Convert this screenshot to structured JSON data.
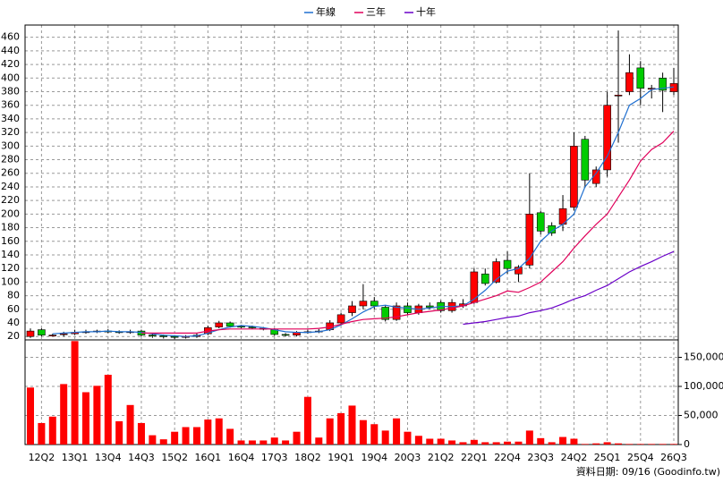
{
  "chart_data": [
    {
      "type": "candlestick",
      "legend": "top",
      "grid": true,
      "up_color": "#ff0000",
      "down_color": "#00cc00",
      "categories": [
        null,
        "12Q2",
        null,
        null,
        "13Q1",
        null,
        null,
        "13Q4",
        null,
        null,
        "14Q3",
        null,
        null,
        "15Q2",
        null,
        null,
        "16Q1",
        null,
        null,
        "16Q4",
        null,
        null,
        "17Q3",
        null,
        null,
        "18Q2",
        null,
        null,
        "19Q1",
        null,
        null,
        "19Q4",
        null,
        null,
        "20Q3",
        null,
        null,
        "21Q2",
        null,
        null,
        "22Q1",
        null,
        null,
        "22Q4",
        null,
        null,
        "23Q3",
        null,
        null,
        "24Q2",
        null,
        null,
        "25Q1",
        null,
        null,
        "25Q4",
        null,
        null,
        "26Q3"
      ],
      "open": [
        20,
        30,
        22,
        23,
        24,
        26,
        27,
        28,
        27,
        26,
        28,
        22,
        21,
        20,
        19,
        20,
        24,
        34,
        40,
        35,
        34,
        32,
        30,
        23,
        22,
        26,
        27,
        30,
        40,
        55,
        65,
        72,
        63,
        45,
        65,
        55,
        65,
        70,
        58,
        65,
        70,
        112,
        100,
        132,
        112,
        125,
        202,
        183,
        185,
        210,
        310,
        245,
        265,
        375,
        380,
        415,
        385,
        400,
        380
      ],
      "high": [
        32,
        32,
        24,
        27,
        30,
        30,
        30,
        31,
        29,
        30,
        30,
        24,
        23,
        22,
        22,
        25,
        36,
        43,
        42,
        37,
        36,
        34,
        32,
        25,
        28,
        30,
        31,
        44,
        55,
        72,
        97,
        78,
        66,
        70,
        70,
        68,
        70,
        73,
        75,
        75,
        120,
        120,
        135,
        145,
        125,
        260,
        205,
        188,
        228,
        320,
        315,
        270,
        380,
        470,
        435,
        425,
        390,
        408,
        415
      ],
      "low": [
        18,
        20,
        20,
        20,
        22,
        24,
        25,
        25,
        24,
        24,
        20,
        18,
        17,
        16,
        17,
        18,
        22,
        32,
        33,
        32,
        31,
        29,
        21,
        20,
        20,
        24,
        25,
        28,
        38,
        50,
        60,
        60,
        42,
        43,
        52,
        52,
        60,
        55,
        55,
        62,
        68,
        95,
        98,
        112,
        100,
        120,
        170,
        168,
        175,
        205,
        240,
        240,
        255,
        305,
        375,
        360,
        370,
        350,
        375
      ],
      "close": [
        28,
        22,
        22,
        24,
        26,
        27,
        28,
        27,
        26,
        27,
        22,
        21,
        20,
        19,
        20,
        22,
        33,
        40,
        35,
        34,
        33,
        31,
        23,
        22,
        26,
        27,
        28,
        40,
        52,
        65,
        72,
        65,
        45,
        65,
        55,
        65,
        63,
        58,
        70,
        68,
        115,
        98,
        130,
        120,
        122,
        200,
        175,
        172,
        208,
        300,
        250,
        265,
        360,
        375,
        408,
        385,
        385,
        382,
        392
      ],
      "series": [
        {
          "name": "年線",
          "color": "#1f6fd0",
          "values": [
            null,
            null,
            24,
            25,
            26,
            27,
            27,
            28,
            27,
            27,
            26,
            24,
            22,
            21,
            20,
            21,
            25,
            30,
            34,
            36,
            35,
            33,
            30,
            27,
            26,
            26,
            27,
            30,
            37,
            46,
            56,
            64,
            66,
            63,
            62,
            60,
            62,
            64,
            64,
            65,
            75,
            88,
            104,
            116,
            120,
            135,
            160,
            175,
            185,
            200,
            240,
            260,
            285,
            320,
            360,
            370,
            383,
            385,
            387
          ]
        },
        {
          "name": "三年",
          "color": "#e0005a",
          "values": [
            null,
            null,
            null,
            null,
            null,
            null,
            null,
            null,
            null,
            null,
            25,
            25,
            25,
            25,
            25,
            25,
            28,
            30,
            31,
            31,
            31,
            31,
            31,
            31,
            31,
            31,
            32,
            34,
            38,
            42,
            45,
            46,
            47,
            49,
            52,
            55,
            57,
            59,
            62,
            65,
            70,
            75,
            80,
            87,
            85,
            92,
            100,
            115,
            130,
            150,
            168,
            185,
            200,
            225,
            250,
            278,
            295,
            305,
            322
          ]
        },
        {
          "name": "十年",
          "color": "#6a00c8",
          "values": [
            null,
            null,
            null,
            null,
            null,
            null,
            null,
            null,
            null,
            null,
            null,
            null,
            null,
            null,
            null,
            null,
            null,
            null,
            null,
            null,
            null,
            null,
            null,
            null,
            null,
            null,
            null,
            null,
            null,
            null,
            null,
            null,
            null,
            null,
            null,
            null,
            null,
            null,
            null,
            38,
            40,
            42,
            45,
            48,
            50,
            55,
            58,
            62,
            68,
            75,
            80,
            88,
            95,
            105,
            115,
            123,
            130,
            138,
            145
          ]
        }
      ],
      "ylim": [
        15,
        478
      ],
      "yticks": [
        20,
        40,
        60,
        80,
        100,
        120,
        140,
        160,
        180,
        200,
        220,
        240,
        260,
        280,
        300,
        320,
        340,
        360,
        380,
        400,
        420,
        440,
        460
      ]
    },
    {
      "type": "bar",
      "color": "#ff0000",
      "grid": true,
      "values": [
        98000,
        37000,
        48000,
        104000,
        178000,
        90000,
        101000,
        120000,
        40000,
        68000,
        37000,
        16000,
        9000,
        22000,
        30000,
        30000,
        43000,
        45000,
        27000,
        7000,
        7000,
        7000,
        12000,
        7000,
        22000,
        82000,
        12000,
        45000,
        54000,
        67000,
        42000,
        35000,
        24000,
        45000,
        22000,
        15000,
        10000,
        10000,
        7000,
        4000,
        8000,
        4000,
        4000,
        5000,
        5000,
        24000,
        11000,
        4000,
        13000,
        10000,
        1000,
        2000,
        4000,
        2000,
        1000,
        1000,
        1000,
        1000,
        1000
      ],
      "ylim": [
        0,
        180000
      ],
      "yticks": [
        0,
        {
          "value": 50000,
          "label": "50,000"
        },
        {
          "value": 100000,
          "label": "100,000"
        },
        {
          "value": 150000,
          "label": "150,000"
        }
      ]
    }
  ],
  "footer": "資料日期: 09/16 (Goodinfo.tw)"
}
